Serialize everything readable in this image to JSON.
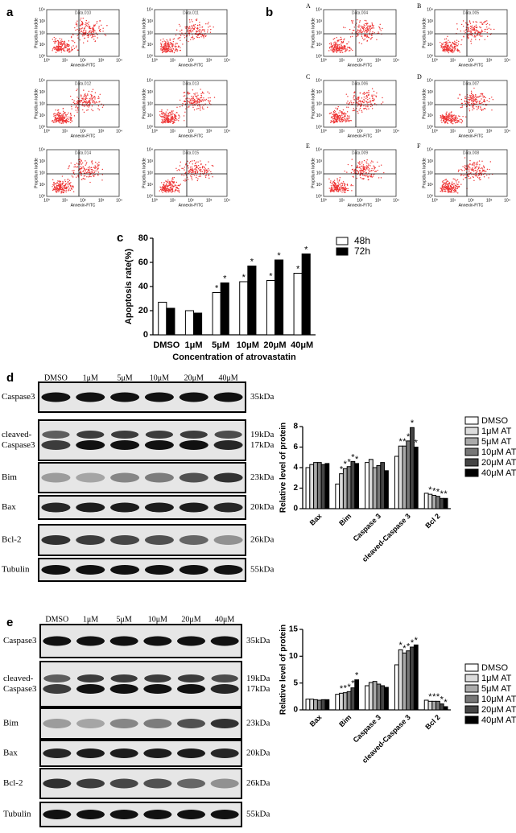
{
  "flow": {
    "x_label": "Annexin-FITC",
    "y_label": "Propidium Iodide",
    "ticks": [
      "10⁰",
      "10¹",
      "10²",
      "10³",
      "10⁴"
    ]
  },
  "panel_a": {
    "label": "a",
    "plots": [
      {
        "title": "Data.010"
      },
      {
        "title": "Data.011"
      },
      {
        "title": "Data.012"
      },
      {
        "title": "Data.013"
      },
      {
        "title": "Data.014"
      },
      {
        "title": "Data.015"
      }
    ]
  },
  "panel_b": {
    "label": "b",
    "plots": [
      {
        "letter": "A",
        "title": "Data.004"
      },
      {
        "letter": "B",
        "title": "Data.005"
      },
      {
        "letter": "C",
        "title": "Data.006"
      },
      {
        "letter": "D",
        "title": "Data.007"
      },
      {
        "letter": "E",
        "title": "Data.009"
      },
      {
        "letter": "F",
        "title": "Data.008"
      }
    ]
  },
  "chart_data": [
    {
      "type": "bar",
      "label": "c",
      "y_label": "Apoptosis rate(%)",
      "x_label": "Concentration of atrovastatin",
      "categories": [
        "DMSO",
        "1μM",
        "5μM",
        "10μM",
        "20μM",
        "40μM"
      ],
      "series": [
        {
          "name": "48h",
          "color": "#ffffff",
          "values": [
            27,
            20,
            35,
            44,
            45,
            51
          ],
          "markers": [
            null,
            null,
            "*",
            "*",
            "*",
            "*"
          ]
        },
        {
          "name": "72h",
          "color": "#000000",
          "values": [
            22,
            18,
            43,
            57,
            62,
            67
          ],
          "markers": [
            null,
            null,
            "*",
            "*",
            "*",
            "*"
          ]
        }
      ],
      "ylim": [
        0,
        80
      ],
      "yticks": [
        0,
        20,
        40,
        60,
        80
      ]
    },
    {
      "type": "bar",
      "label": "d",
      "y_label": "Relative level of protein",
      "categories": [
        "Bax",
        "Bim",
        "Caspase 3",
        "cleaved-Caspase 3",
        "Bcl 2"
      ],
      "series": [
        {
          "name": "DMSO",
          "color": "#ffffff",
          "values": [
            4.0,
            2.4,
            4.5,
            5.1,
            1.5
          ],
          "markers": [
            null,
            null,
            null,
            null,
            null
          ]
        },
        {
          "name": "1μM AT",
          "color": "#dddddd",
          "values": [
            4.3,
            3.4,
            4.8,
            6.1,
            1.4
          ],
          "markers": [
            null,
            "*",
            null,
            "*",
            "*"
          ]
        },
        {
          "name": "5μM AT",
          "color": "#aaaaaa",
          "values": [
            4.5,
            3.9,
            4.0,
            6.1,
            1.3
          ],
          "markers": [
            null,
            "*",
            null,
            "*",
            "*"
          ]
        },
        {
          "name": "10μM AT",
          "color": "#777777",
          "values": [
            4.5,
            4.1,
            4.2,
            6.6,
            1.2
          ],
          "markers": [
            null,
            "*",
            null,
            "*",
            "*"
          ]
        },
        {
          "name": "20μM AT",
          "color": "#444444",
          "values": [
            4.3,
            4.6,
            4.5,
            7.9,
            1.0
          ],
          "markers": [
            null,
            "*",
            null,
            "*",
            "*"
          ]
        },
        {
          "name": "40μM AT",
          "color": "#000000",
          "values": [
            4.4,
            4.4,
            3.7,
            6.0,
            1.0
          ],
          "markers": [
            null,
            "*",
            null,
            "*",
            "*"
          ]
        }
      ],
      "ylim": [
        0,
        8
      ],
      "yticks": [
        0,
        2,
        4,
        6,
        8
      ]
    },
    {
      "type": "bar",
      "label": "e",
      "y_label": "Relative level of protein",
      "categories": [
        "Bax",
        "Bim",
        "Caspase 3",
        "cleaved-Caspase 3",
        "Bcl 2"
      ],
      "series": [
        {
          "name": "DMSO",
          "color": "#ffffff",
          "values": [
            2.0,
            2.9,
            4.5,
            8.4,
            1.8
          ],
          "markers": [
            null,
            null,
            null,
            null,
            null
          ]
        },
        {
          "name": "1μM AT",
          "color": "#dddddd",
          "values": [
            2.0,
            3.1,
            5.1,
            11.2,
            1.6
          ],
          "markers": [
            null,
            "*",
            null,
            "*",
            "*"
          ]
        },
        {
          "name": "5μM AT",
          "color": "#aaaaaa",
          "values": [
            1.9,
            3.2,
            5.3,
            10.6,
            1.6
          ],
          "markers": [
            null,
            "*",
            null,
            "*",
            "*"
          ]
        },
        {
          "name": "10μM AT",
          "color": "#777777",
          "values": [
            1.8,
            3.4,
            4.8,
            11.0,
            1.6
          ],
          "markers": [
            null,
            "*",
            null,
            "*",
            "*"
          ]
        },
        {
          "name": "20μM AT",
          "color": "#444444",
          "values": [
            1.9,
            4.1,
            4.5,
            11.7,
            1.1
          ],
          "markers": [
            null,
            "*",
            null,
            "*",
            "*"
          ]
        },
        {
          "name": "40μM AT",
          "color": "#000000",
          "values": [
            1.9,
            5.6,
            4.2,
            12.1,
            0.6
          ],
          "markers": [
            null,
            "*",
            null,
            "*",
            "*"
          ]
        }
      ],
      "ylim": [
        0,
        15
      ],
      "yticks": [
        0,
        5,
        10,
        15
      ]
    }
  ],
  "blots": [
    {
      "lanes": [
        "DMSO",
        "1μM",
        "5μM",
        "10μM",
        "20μM",
        "40μM"
      ],
      "rows": [
        {
          "name": [
            "Caspase3"
          ],
          "size": [
            "35kDa"
          ]
        },
        {
          "name": [
            "cleaved-",
            "Caspase3"
          ],
          "size": [
            "19kDa",
            "17kDa"
          ]
        },
        {
          "name": [
            "Bim"
          ],
          "size": [
            "23kDa"
          ]
        },
        {
          "name": [
            "Bax"
          ],
          "size": [
            "20kDa"
          ]
        },
        {
          "name": [
            "Bcl-2"
          ],
          "size": [
            "26kDa"
          ]
        },
        {
          "name": [
            "Tubulin"
          ],
          "size": [
            "55kDa"
          ]
        }
      ]
    },
    {
      "lanes": [
        "DMSO",
        "1μM",
        "5μM",
        "10μM",
        "20μM",
        "40μM"
      ],
      "rows": [
        {
          "name": [
            "Caspase3"
          ],
          "size": [
            "35kDa"
          ]
        },
        {
          "name": [
            "cleaved-",
            "Caspase3"
          ],
          "size": [
            "19kDa",
            "17kDa"
          ]
        },
        {
          "name": [
            "Bim"
          ],
          "size": [
            "23kDa"
          ]
        },
        {
          "name": [
            "Bax"
          ],
          "size": [
            "20kDa"
          ]
        },
        {
          "name": [
            "Bcl-2"
          ],
          "size": [
            "26kDa"
          ]
        },
        {
          "name": [
            "Tubulin"
          ],
          "size": [
            "55kDa"
          ]
        }
      ]
    }
  ]
}
